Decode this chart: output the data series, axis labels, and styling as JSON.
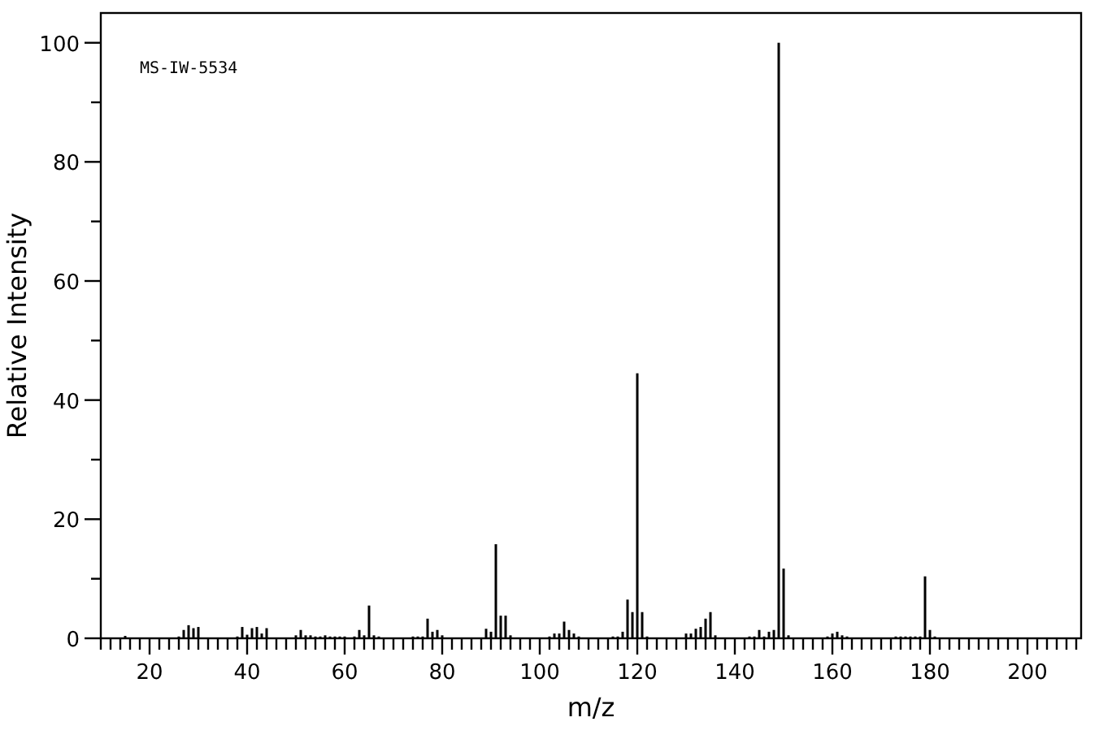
{
  "chart_data": {
    "type": "bar",
    "xlabel": "m/z",
    "ylabel": "Relative Intensity",
    "annotations": [
      "MS-IW-5534"
    ],
    "color": "#000000",
    "x": [
      15,
      26,
      27,
      28,
      29,
      30,
      38,
      39,
      40,
      41,
      42,
      43,
      44,
      50,
      51,
      52,
      53,
      54,
      55,
      56,
      57,
      58,
      59,
      60,
      62,
      63,
      64,
      65,
      66,
      67,
      74,
      75,
      76,
      77,
      78,
      79,
      80,
      89,
      90,
      91,
      92,
      93,
      94,
      102,
      103,
      104,
      105,
      106,
      107,
      108,
      115,
      116,
      117,
      118,
      119,
      120,
      121,
      122,
      130,
      131,
      132,
      133,
      134,
      135,
      136,
      143,
      144,
      145,
      146,
      147,
      148,
      149,
      150,
      151,
      159,
      160,
      161,
      162,
      163,
      173,
      174,
      175,
      176,
      177,
      178,
      179,
      180,
      181
    ],
    "values": [
      0.4,
      0.3,
      1.4,
      2.2,
      1.7,
      1.9,
      0.3,
      1.9,
      0.6,
      1.7,
      1.9,
      0.8,
      1.7,
      0.5,
      1.4,
      0.5,
      0.5,
      0.3,
      0.3,
      0.5,
      0.3,
      0.3,
      0.3,
      0.3,
      0.3,
      1.4,
      0.5,
      5.5,
      0.5,
      0.3,
      0.3,
      0.3,
      0.3,
      3.3,
      1.1,
      1.4,
      0.5,
      1.6,
      1.1,
      15.8,
      3.8,
      3.8,
      0.5,
      0.3,
      0.8,
      0.8,
      2.8,
      1.4,
      0.8,
      0.3,
      0.3,
      0.3,
      1.1,
      6.5,
      4.4,
      44.5,
      4.4,
      0.3,
      0.8,
      0.8,
      1.6,
      1.9,
      3.3,
      4.4,
      0.5,
      0.3,
      0.3,
      1.4,
      0.3,
      1.1,
      1.4,
      100,
      11.7,
      0.5,
      0.3,
      0.8,
      1.1,
      0.5,
      0.3,
      0.3,
      0.3,
      0.3,
      0.3,
      0.3,
      0.3,
      10.4,
      1.4,
      0.3
    ],
    "xlim": [
      10,
      211
    ],
    "ylim": [
      0,
      105
    ],
    "xticks": [
      {
        "value": 10,
        "label": null
      },
      {
        "value": 12,
        "label": null
      },
      {
        "value": 14,
        "label": null
      },
      {
        "value": 16,
        "label": null
      },
      {
        "value": 18,
        "label": null
      },
      20,
      {
        "value": 22,
        "label": null
      },
      {
        "value": 24,
        "label": null
      },
      {
        "value": 26,
        "label": null
      },
      {
        "value": 28,
        "label": null
      },
      {
        "value": 30,
        "label": null
      },
      {
        "value": 32,
        "label": null
      },
      {
        "value": 34,
        "label": null
      },
      {
        "value": 36,
        "label": null
      },
      {
        "value": 38,
        "label": null
      },
      40,
      {
        "value": 42,
        "label": null
      },
      {
        "value": 44,
        "label": null
      },
      {
        "value": 46,
        "label": null
      },
      {
        "value": 48,
        "label": null
      },
      {
        "value": 50,
        "label": null
      },
      {
        "value": 52,
        "label": null
      },
      {
        "value": 54,
        "label": null
      },
      {
        "value": 56,
        "label": null
      },
      {
        "value": 58,
        "label": null
      },
      60,
      {
        "value": 62,
        "label": null
      },
      {
        "value": 64,
        "label": null
      },
      {
        "value": 66,
        "label": null
      },
      {
        "value": 68,
        "label": null
      },
      {
        "value": 70,
        "label": null
      },
      {
        "value": 72,
        "label": null
      },
      {
        "value": 74,
        "label": null
      },
      {
        "value": 76,
        "label": null
      },
      {
        "value": 78,
        "label": null
      },
      80,
      {
        "value": 82,
        "label": null
      },
      {
        "value": 84,
        "label": null
      },
      {
        "value": 86,
        "label": null
      },
      {
        "value": 88,
        "label": null
      },
      {
        "value": 90,
        "label": null
      },
      {
        "value": 92,
        "label": null
      },
      {
        "value": 94,
        "label": null
      },
      {
        "value": 96,
        "label": null
      },
      {
        "value": 98,
        "label": null
      },
      100,
      {
        "value": 102,
        "label": null
      },
      {
        "value": 104,
        "label": null
      },
      {
        "value": 106,
        "label": null
      },
      {
        "value": 108,
        "label": null
      },
      {
        "value": 110,
        "label": null
      },
      {
        "value": 112,
        "label": null
      },
      {
        "value": 114,
        "label": null
      },
      {
        "value": 116,
        "label": null
      },
      {
        "value": 118,
        "label": null
      },
      120,
      {
        "value": 122,
        "label": null
      },
      {
        "value": 124,
        "label": null
      },
      {
        "value": 126,
        "label": null
      },
      {
        "value": 128,
        "label": null
      },
      {
        "value": 130,
        "label": null
      },
      {
        "value": 132,
        "label": null
      },
      {
        "value": 134,
        "label": null
      },
      {
        "value": 136,
        "label": null
      },
      {
        "value": 138,
        "label": null
      },
      140,
      {
        "value": 142,
        "label": null
      },
      {
        "value": 144,
        "label": null
      },
      {
        "value": 146,
        "label": null
      },
      {
        "value": 148,
        "label": null
      },
      {
        "value": 150,
        "label": null
      },
      {
        "value": 152,
        "label": null
      },
      {
        "value": 154,
        "label": null
      },
      {
        "value": 156,
        "label": null
      },
      {
        "value": 158,
        "label": null
      },
      160,
      {
        "value": 162,
        "label": null
      },
      {
        "value": 164,
        "label": null
      },
      {
        "value": 166,
        "label": null
      },
      {
        "value": 168,
        "label": null
      },
      {
        "value": 170,
        "label": null
      },
      {
        "value": 172,
        "label": null
      },
      {
        "value": 174,
        "label": null
      },
      {
        "value": 176,
        "label": null
      },
      {
        "value": 178,
        "label": null
      },
      180,
      {
        "value": 182,
        "label": null
      },
      {
        "value": 184,
        "label": null
      },
      {
        "value": 186,
        "label": null
      },
      {
        "value": 188,
        "label": null
      },
      {
        "value": 190,
        "label": null
      },
      {
        "value": 192,
        "label": null
      },
      {
        "value": 194,
        "label": null
      },
      {
        "value": 196,
        "label": null
      },
      {
        "value": 198,
        "label": null
      },
      200,
      {
        "value": 202,
        "label": null
      },
      {
        "value": 204,
        "label": null
      },
      {
        "value": 206,
        "label": null
      },
      {
        "value": 208,
        "label": null
      },
      {
        "value": 210,
        "label": null
      }
    ],
    "yticks": [
      0,
      {
        "value": 10,
        "label": null
      },
      20,
      {
        "value": 30,
        "label": null
      },
      40,
      {
        "value": 50,
        "label": null
      },
      60,
      {
        "value": 70,
        "label": null
      },
      80,
      {
        "value": 90,
        "label": null
      },
      100
    ],
    "grid": false
  }
}
